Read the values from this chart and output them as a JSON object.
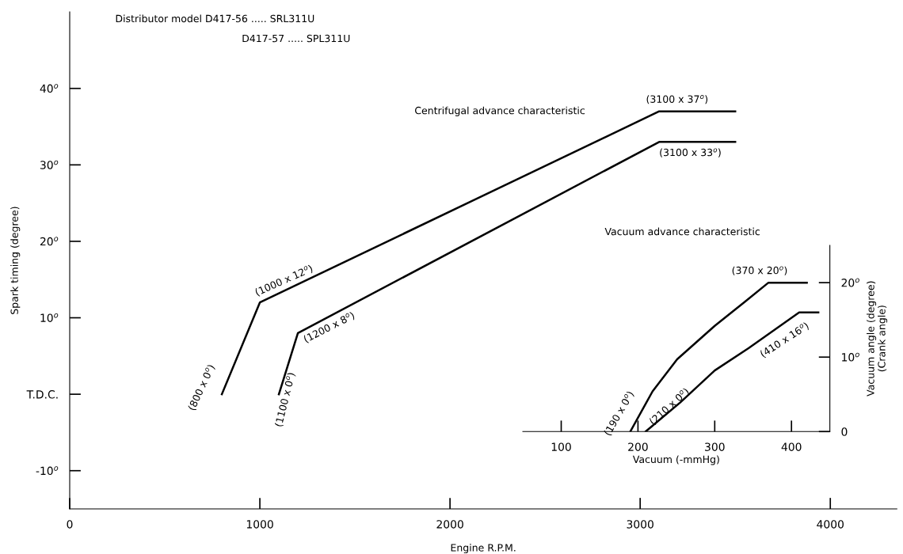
{
  "chart_data": [
    {
      "type": "line",
      "title": "Centrifugal advance characteristic",
      "xlabel": "Engine R.P.M.",
      "ylabel": "Spark timing (degree)",
      "xlim": [
        0,
        4350
      ],
      "xticks": [
        0,
        1000,
        2000,
        3000,
        4000
      ],
      "ylim": [
        -15,
        50
      ],
      "yticks": [
        {
          "value": -10,
          "label": "-10$^{o}$"
        },
        {
          "value": 0,
          "label": "T.D.C."
        },
        {
          "value": 10,
          "label": "10$^{o}$"
        },
        {
          "value": 20,
          "label": "20$^{o}$"
        },
        {
          "value": 30,
          "label": "30$^{o}$"
        },
        {
          "value": 40,
          "label": "40$^{o}$"
        }
      ],
      "grid": false,
      "legend": false,
      "marker": "none",
      "line_style": "solid",
      "series": [
        {
          "color": "#000000",
          "x": [
            800,
            1000,
            3100,
            3500
          ],
          "values": [
            0,
            12,
            37,
            37
          ]
        },
        {
          "color": "#000000",
          "x": [
            1100,
            1200,
            3100,
            3500
          ],
          "values": [
            0,
            8,
            33,
            33
          ]
        }
      ],
      "annotations": [
        "Distributor model D417-56 ..... SRL311U",
        "D417-57 ..... SPL311U",
        {
          "text": "(800 x 0$^{o}$)",
          "x": 800,
          "y": 0
        },
        {
          "text": "(1000 x 12$^{o}$)",
          "x": 1000,
          "y": 12
        },
        {
          "text": "(1100 x 0$^{o}$)",
          "x": 1100,
          "y": 0
        },
        {
          "text": "(1200 x 8$^{o}$)",
          "x": 1200,
          "y": 8
        },
        {
          "text": "(3100 x 37$^{o}$)",
          "x": 3100,
          "y": 37
        },
        {
          "text": "(3100 x 33$^{o}$)",
          "x": 3100,
          "y": 33
        }
      ]
    },
    {
      "type": "line",
      "title": "Vacuum advance characteristic",
      "xlabel": "Vacuum (-mmHg)",
      "ylabel": "Vacuum angle (degree)\n(Crank angle)",
      "xlim": [
        50,
        450
      ],
      "xticks": [
        100,
        200,
        300,
        400
      ],
      "ylim": [
        0,
        25
      ],
      "yticks": [
        0,
        {
          "value": 10,
          "label": "10$^{o}$"
        },
        {
          "value": 20,
          "label": "20$^{o}$"
        }
      ],
      "grid": false,
      "legend": false,
      "marker": "none",
      "line_style": "solid",
      "series": [
        {
          "color": "#000000",
          "x": [
            190,
            219,
            251,
            300,
            340,
            370,
            420
          ],
          "values": [
            0,
            5.4,
            9.7,
            14.2,
            17.5,
            20,
            20
          ]
        },
        {
          "color": "#000000",
          "x": [
            210,
            255,
            300,
            344,
            410,
            435
          ],
          "values": [
            0,
            3.9,
            8.2,
            11.2,
            16,
            16
          ]
        }
      ],
      "annotations": [
        {
          "text": "(190 x 0$^{o}$)",
          "x": 190,
          "y": 0
        },
        {
          "text": "(370 x 20$^{o}$)",
          "x": 370,
          "y": 20
        },
        {
          "text": "(210 x 0$^{o}$)",
          "x": 210,
          "y": 0
        },
        {
          "text": "(410 x 16$^{o}$)",
          "x": 410,
          "y": 16
        }
      ]
    }
  ]
}
